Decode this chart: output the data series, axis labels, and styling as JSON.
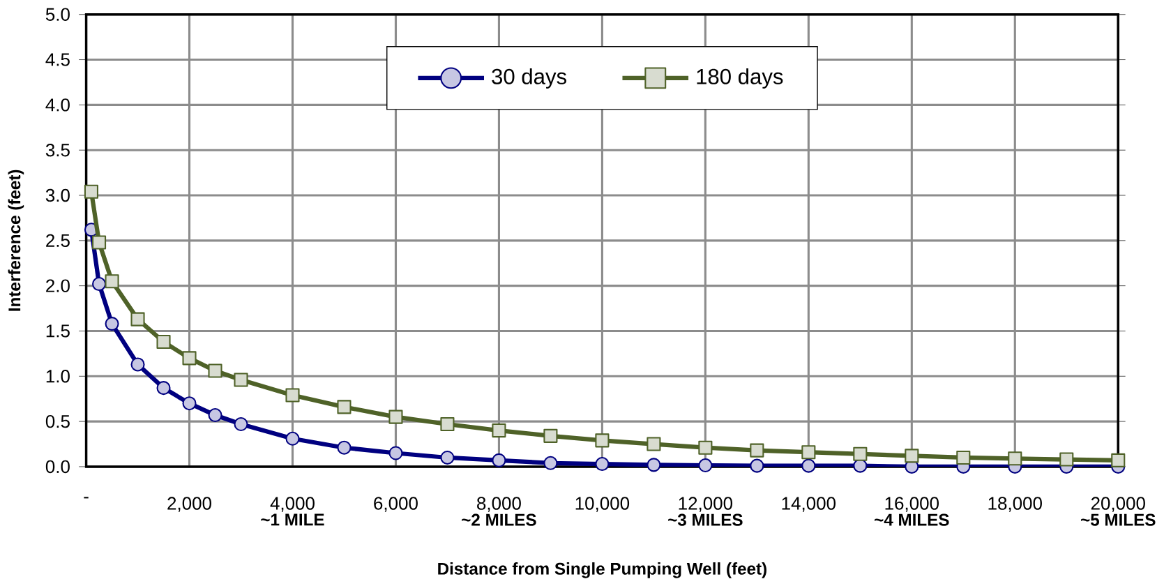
{
  "chart_data": {
    "type": "line",
    "xlabel": "Distance from Single Pumping Well (feet)",
    "ylabel": "Interference (feet)",
    "xlim": [
      0,
      20000
    ],
    "ylim": [
      0,
      5
    ],
    "xticks": [
      {
        "value": 0,
        "label": "-"
      },
      {
        "value": 2000,
        "label": "2,000"
      },
      {
        "value": 4000,
        "label": "4,000"
      },
      {
        "value": 6000,
        "label": "6,000"
      },
      {
        "value": 8000,
        "label": "8,000"
      },
      {
        "value": 10000,
        "label": "10,000"
      },
      {
        "value": 12000,
        "label": "12,000"
      },
      {
        "value": 14000,
        "label": "14,000"
      },
      {
        "value": 16000,
        "label": "16,000"
      },
      {
        "value": 18000,
        "label": "18,000"
      },
      {
        "value": 20000,
        "label": "20,000"
      }
    ],
    "yticks": [
      {
        "value": 0,
        "label": "0.0"
      },
      {
        "value": 0.5,
        "label": "0.5"
      },
      {
        "value": 1,
        "label": "1.0"
      },
      {
        "value": 1.5,
        "label": "1.5"
      },
      {
        "value": 2,
        "label": "2.0"
      },
      {
        "value": 2.5,
        "label": "2.5"
      },
      {
        "value": 3,
        "label": "3.0"
      },
      {
        "value": 3.5,
        "label": "3.5"
      },
      {
        "value": 4,
        "label": "4.0"
      },
      {
        "value": 4.5,
        "label": "4.5"
      },
      {
        "value": 5,
        "label": "5.0"
      }
    ],
    "x": [
      100,
      250,
      500,
      1000,
      1500,
      2000,
      2500,
      3000,
      4000,
      5000,
      6000,
      7000,
      8000,
      9000,
      10000,
      11000,
      12000,
      13000,
      14000,
      15000,
      16000,
      17000,
      18000,
      19000,
      20000
    ],
    "series": [
      {
        "name": "30 days",
        "color": "#000080",
        "marker": "circle",
        "values": [
          2.62,
          2.02,
          1.58,
          1.13,
          0.87,
          0.7,
          0.57,
          0.47,
          0.31,
          0.21,
          0.15,
          0.1,
          0.07,
          0.04,
          0.03,
          0.02,
          0.015,
          0.01,
          0.01,
          0.01,
          0.0,
          0.0,
          0.0,
          0.0,
          0.0
        ]
      },
      {
        "name": "180 days",
        "color": "#4f6228",
        "marker": "square",
        "values": [
          3.04,
          2.48,
          2.05,
          1.63,
          1.38,
          1.2,
          1.06,
          0.96,
          0.79,
          0.66,
          0.55,
          0.47,
          0.4,
          0.34,
          0.29,
          0.25,
          0.21,
          0.18,
          0.16,
          0.14,
          0.12,
          0.1,
          0.09,
          0.08,
          0.07
        ]
      }
    ],
    "annotations": [
      "~1 MILE",
      "~2 MILES",
      "~3 MILES",
      "~4 MILES",
      "~5 MILES"
    ],
    "grid": true,
    "legend": "top",
    "line_style": "solid"
  }
}
